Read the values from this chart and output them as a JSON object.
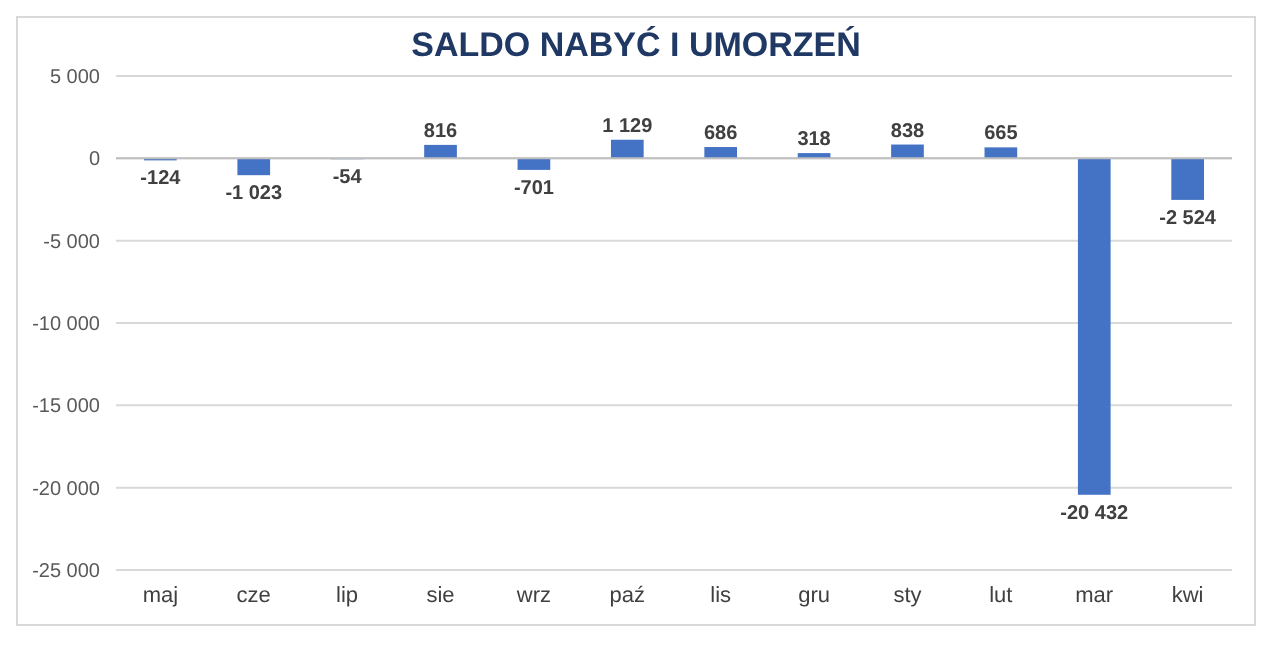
{
  "chart_data": {
    "type": "bar",
    "title": "SALDO NABYĆ I UMORZEŃ",
    "categories": [
      "maj",
      "cze",
      "lip",
      "sie",
      "wrz",
      "paź",
      "lis",
      "gru",
      "sty",
      "lut",
      "mar",
      "kwi"
    ],
    "values": [
      -124,
      -1023,
      -54,
      816,
      -701,
      1129,
      686,
      318,
      838,
      665,
      -20432,
      -2524
    ],
    "value_labels": [
      "-124",
      "-1 023",
      "-54",
      "816",
      "-701",
      "1 129",
      "686",
      "318",
      "838",
      "665",
      "-20 432",
      "-2 524"
    ],
    "color": "#4472c4",
    "ylim": [
      -25000,
      5000
    ],
    "yticks": [
      {
        "value": 5000,
        "label": "5 000"
      },
      0,
      {
        "value": -5000,
        "label": "-5 000"
      },
      {
        "value": -10000,
        "label": "-10 000"
      },
      {
        "value": -15000,
        "label": "-15 000"
      },
      {
        "value": -20000,
        "label": "-20 000"
      },
      {
        "value": -25000,
        "label": "-25 000"
      }
    ],
    "grid": "y"
  }
}
